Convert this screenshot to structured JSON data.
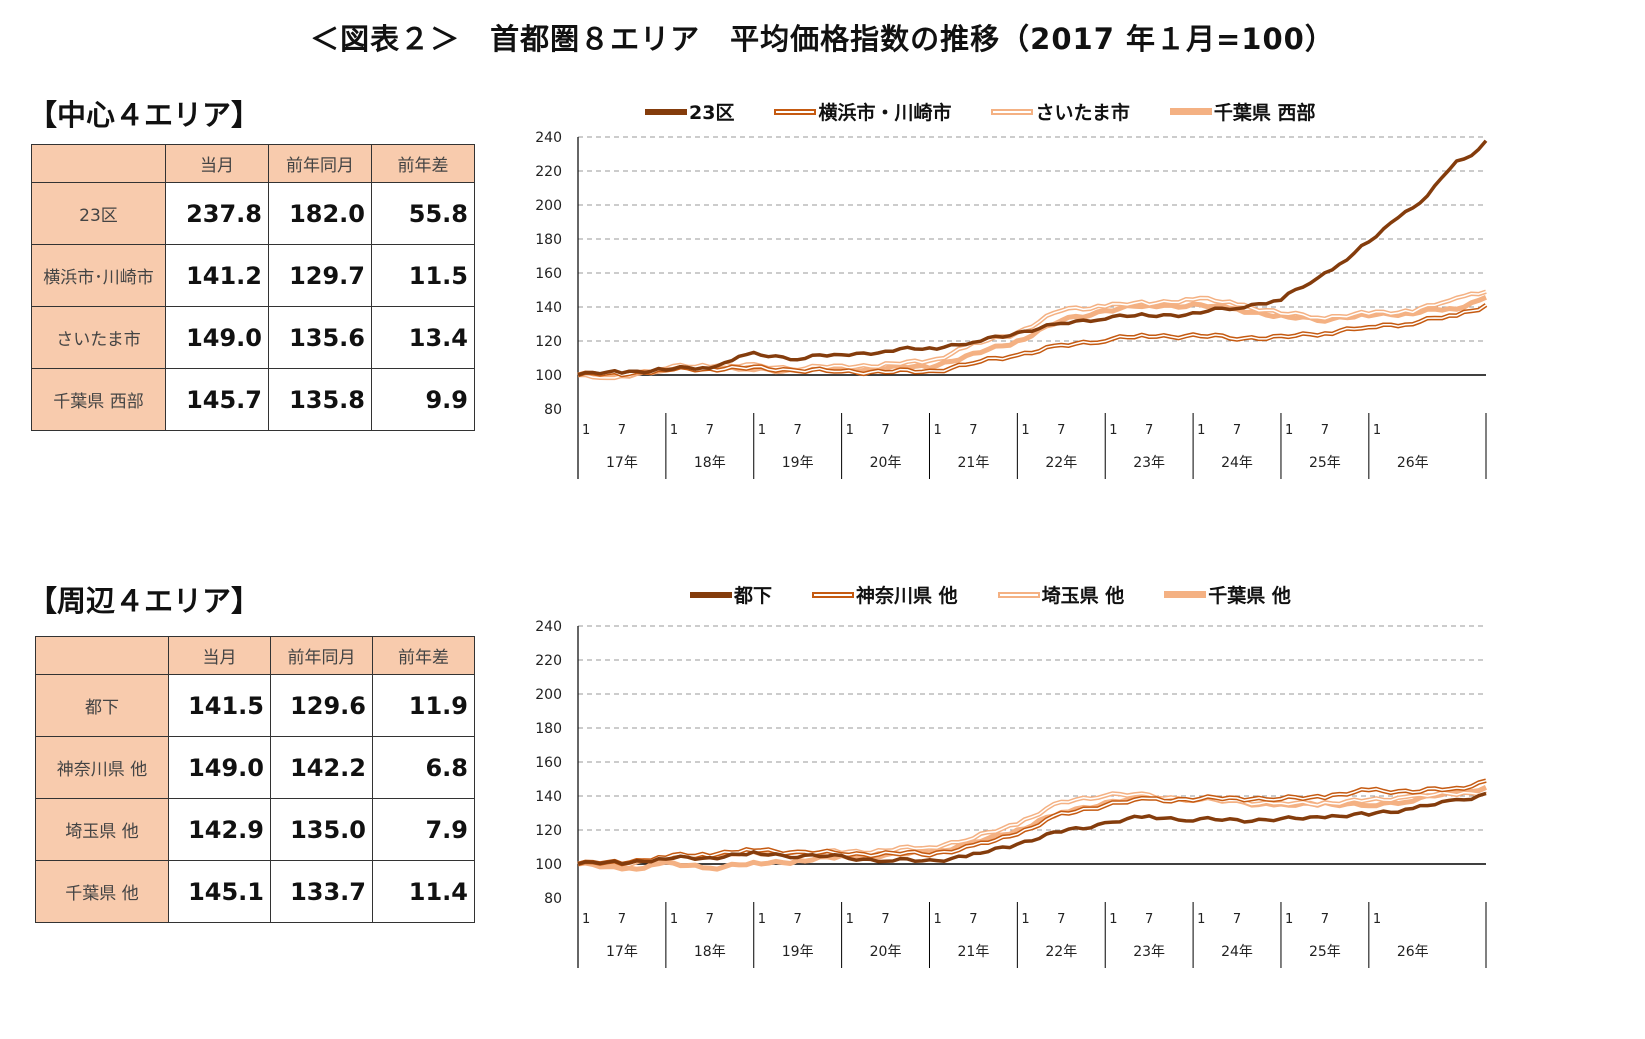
{
  "title": "＜図表２＞　首都圏８エリア　平均価格指数の推移（2017 年１月=100）",
  "sections": [
    {
      "label": "【中心４エリア】",
      "table": {
        "headers": [
          "",
          "当月",
          "前年同月",
          "前年差"
        ],
        "rows": [
          {
            "name": "23区",
            "current": "237.8",
            "prev": "182.0",
            "diff": "55.8"
          },
          {
            "name": "横浜市･川崎市",
            "current": "141.2",
            "prev": "129.7",
            "diff": "11.5"
          },
          {
            "name": "さいたま市",
            "current": "149.0",
            "prev": "135.6",
            "diff": "13.4"
          },
          {
            "name": "千葉県 西部",
            "current": "145.7",
            "prev": "135.8",
            "diff": "9.9"
          }
        ]
      }
    },
    {
      "label": "【周辺４エリア】",
      "table": {
        "headers": [
          "",
          "当月",
          "前年同月",
          "前年差"
        ],
        "rows": [
          {
            "name": "都下",
            "current": "141.5",
            "prev": "129.6",
            "diff": "11.9"
          },
          {
            "name": "神奈川県 他",
            "current": "149.0",
            "prev": "142.2",
            "diff": "6.8"
          },
          {
            "name": "埼玉県 他",
            "current": "142.9",
            "prev": "135.0",
            "diff": "7.9"
          },
          {
            "name": "千葉県 他",
            "current": "145.1",
            "prev": "133.7",
            "diff": "11.4"
          }
        ]
      }
    }
  ],
  "colors": {
    "dark": "#843c0c",
    "medium": "#c55a11",
    "light": "#f4b183",
    "lighter": "#f8cbad",
    "header": "#f8cbad"
  },
  "chart_data": [
    {
      "type": "line",
      "ylim": [
        80,
        240
      ],
      "yticks": [
        80,
        100,
        120,
        140,
        160,
        180,
        200,
        220,
        240
      ],
      "x_month_ticks": [
        "1",
        "7",
        "1",
        "7",
        "1",
        "7",
        "1",
        "7",
        "1",
        "7",
        "1",
        "7",
        "1",
        "7",
        "1",
        "7",
        "1",
        "7",
        "1"
      ],
      "x_year_labels": [
        "17年",
        "18年",
        "19年",
        "20年",
        "21年",
        "22年",
        "23年",
        "24年",
        "25年",
        "26年"
      ],
      "grid": true,
      "legend": "top",
      "x_range": [
        "2017-01",
        "2026-01"
      ],
      "series": [
        {
          "name": "23区",
          "style": "solid",
          "color": "#843c0c",
          "anchors": [
            [
              0,
              100
            ],
            [
              6,
              102
            ],
            [
              12,
              103
            ],
            [
              18,
              105
            ],
            [
              20,
              108
            ],
            [
              24,
              112
            ],
            [
              30,
              110
            ],
            [
              36,
              112
            ],
            [
              42,
              114
            ],
            [
              48,
              116
            ],
            [
              54,
              119
            ],
            [
              60,
              125
            ],
            [
              66,
              130
            ],
            [
              72,
              134
            ],
            [
              78,
              135
            ],
            [
              84,
              136
            ],
            [
              90,
              140
            ],
            [
              96,
              144
            ],
            [
              100,
              155
            ],
            [
              104,
              165
            ],
            [
              108,
              178
            ],
            [
              112,
              193
            ],
            [
              116,
              205
            ],
            [
              118,
              215
            ],
            [
              120,
              225
            ],
            [
              122,
              230
            ],
            [
              124,
              237.8
            ]
          ]
        },
        {
          "name": "横浜市・川崎市",
          "style": "double",
          "color": "#c55a11",
          "anchors": [
            [
              0,
              100
            ],
            [
              6,
              101
            ],
            [
              12,
              103
            ],
            [
              18,
              104
            ],
            [
              24,
              104
            ],
            [
              30,
              103
            ],
            [
              36,
              102
            ],
            [
              42,
              102
            ],
            [
              48,
              102
            ],
            [
              54,
              107
            ],
            [
              60,
              112
            ],
            [
              66,
              117
            ],
            [
              72,
              121
            ],
            [
              78,
              123
            ],
            [
              84,
              123
            ],
            [
              90,
              122
            ],
            [
              96,
              122
            ],
            [
              102,
              125
            ],
            [
              108,
              128
            ],
            [
              114,
              131
            ],
            [
              120,
              135
            ],
            [
              124,
              141.2
            ]
          ]
        },
        {
          "name": "さいたま市",
          "style": "double",
          "color": "#f4b183",
          "anchors": [
            [
              0,
              100
            ],
            [
              3,
              97
            ],
            [
              6,
              100
            ],
            [
              12,
              104
            ],
            [
              18,
              106
            ],
            [
              24,
              105
            ],
            [
              30,
              104
            ],
            [
              36,
              105
            ],
            [
              42,
              106
            ],
            [
              48,
              108
            ],
            [
              54,
              118
            ],
            [
              60,
              125
            ],
            [
              66,
              138
            ],
            [
              72,
              141
            ],
            [
              78,
              142
            ],
            [
              84,
              145
            ],
            [
              90,
              142
            ],
            [
              96,
              136
            ],
            [
              102,
              134
            ],
            [
              108,
              136
            ],
            [
              114,
              138
            ],
            [
              118,
              142
            ],
            [
              120,
              146
            ],
            [
              124,
              149.0
            ]
          ]
        },
        {
          "name": "千葉県 西部",
          "style": "thick",
          "color": "#f4b183",
          "anchors": [
            [
              0,
              100
            ],
            [
              6,
              100
            ],
            [
              12,
              103
            ],
            [
              18,
              105
            ],
            [
              24,
              103
            ],
            [
              30,
              103
            ],
            [
              36,
              103
            ],
            [
              42,
              104
            ],
            [
              48,
              105
            ],
            [
              54,
              112
            ],
            [
              60,
              120
            ],
            [
              66,
              132
            ],
            [
              72,
              138
            ],
            [
              78,
              141
            ],
            [
              84,
              141
            ],
            [
              90,
              139
            ],
            [
              96,
              134
            ],
            [
              102,
              133
            ],
            [
              108,
              135
            ],
            [
              114,
              137
            ],
            [
              120,
              139
            ],
            [
              124,
              145.7
            ]
          ]
        }
      ]
    },
    {
      "type": "line",
      "ylim": [
        80,
        240
      ],
      "yticks": [
        80,
        100,
        120,
        140,
        160,
        180,
        200,
        220,
        240
      ],
      "x_month_ticks": [
        "1",
        "7",
        "1",
        "7",
        "1",
        "7",
        "1",
        "7",
        "1",
        "7",
        "1",
        "7",
        "1",
        "7",
        "1",
        "7",
        "1",
        "7",
        "1"
      ],
      "x_year_labels": [
        "17年",
        "18年",
        "19年",
        "20年",
        "21年",
        "22年",
        "23年",
        "24年",
        "25年",
        "26年"
      ],
      "grid": true,
      "legend": "top",
      "x_range": [
        "2017-01",
        "2026-01"
      ],
      "series": [
        {
          "name": "都下",
          "style": "solid",
          "color": "#843c0c",
          "anchors": [
            [
              0,
              100
            ],
            [
              6,
              101
            ],
            [
              12,
              103
            ],
            [
              18,
              104
            ],
            [
              24,
              106
            ],
            [
              30,
              105
            ],
            [
              36,
              104
            ],
            [
              42,
              102
            ],
            [
              48,
              102
            ],
            [
              54,
              105
            ],
            [
              60,
              112
            ],
            [
              66,
              119
            ],
            [
              72,
              124
            ],
            [
              78,
              128
            ],
            [
              84,
              126
            ],
            [
              90,
              126
            ],
            [
              96,
              126
            ],
            [
              102,
              128
            ],
            [
              108,
              129
            ],
            [
              114,
              133
            ],
            [
              120,
              137
            ],
            [
              124,
              141.5
            ]
          ]
        },
        {
          "name": "神奈川県 他",
          "style": "double",
          "color": "#c55a11",
          "anchors": [
            [
              0,
              100
            ],
            [
              6,
              101
            ],
            [
              12,
              104
            ],
            [
              18,
              106
            ],
            [
              24,
              108
            ],
            [
              30,
              107
            ],
            [
              36,
              106
            ],
            [
              42,
              106
            ],
            [
              48,
              106
            ],
            [
              54,
              110
            ],
            [
              60,
              118
            ],
            [
              66,
              129
            ],
            [
              72,
              135
            ],
            [
              78,
              138
            ],
            [
              84,
              138
            ],
            [
              90,
              139
            ],
            [
              96,
              138
            ],
            [
              102,
              140
            ],
            [
              108,
              143
            ],
            [
              114,
              143
            ],
            [
              120,
              144
            ],
            [
              124,
              149.0
            ]
          ]
        },
        {
          "name": "埼玉県 他",
          "style": "double",
          "color": "#f4b183",
          "anchors": [
            [
              0,
              100
            ],
            [
              6,
              100
            ],
            [
              12,
              104
            ],
            [
              18,
              106
            ],
            [
              24,
              106
            ],
            [
              30,
              106
            ],
            [
              36,
              107
            ],
            [
              42,
              108
            ],
            [
              48,
              110
            ],
            [
              54,
              115
            ],
            [
              60,
              124
            ],
            [
              66,
              136
            ],
            [
              72,
              141
            ],
            [
              78,
              140
            ],
            [
              84,
              138
            ],
            [
              90,
              137
            ],
            [
              96,
              135
            ],
            [
              102,
              136
            ],
            [
              108,
              137
            ],
            [
              114,
              140
            ],
            [
              120,
              141
            ],
            [
              124,
              142.9
            ]
          ]
        },
        {
          "name": "千葉県 他",
          "style": "thick",
          "color": "#f4b183",
          "anchors": [
            [
              0,
              100
            ],
            [
              6,
              97
            ],
            [
              12,
              100
            ],
            [
              18,
              98
            ],
            [
              24,
              100
            ],
            [
              30,
              102
            ],
            [
              36,
              104
            ],
            [
              42,
              105
            ],
            [
              48,
              107
            ],
            [
              54,
              112
            ],
            [
              60,
              120
            ],
            [
              66,
              130
            ],
            [
              72,
              136
            ],
            [
              78,
              139
            ],
            [
              84,
              138
            ],
            [
              90,
              137
            ],
            [
              96,
              134
            ],
            [
              102,
              136
            ],
            [
              108,
              134
            ],
            [
              114,
              138
            ],
            [
              120,
              142
            ],
            [
              124,
              145.1
            ]
          ]
        }
      ]
    }
  ]
}
